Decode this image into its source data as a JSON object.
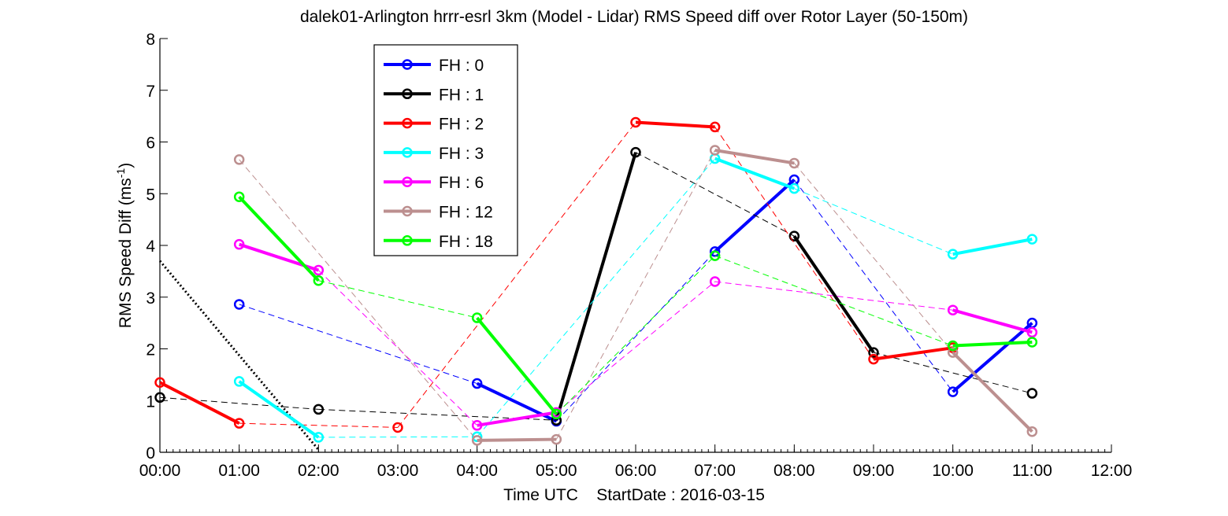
{
  "chart_data": {
    "type": "line",
    "title": "dalek01-Arlington hrrr-esrl 3km (Model - Lidar) RMS Speed diff over Rotor Layer (50-150m)",
    "xlabel": "Time UTC    StartDate : 2016-03-15",
    "ylabel": "RMS Speed Diff (ms",
    "ylabel_sup": "-1",
    "ylabel_close": ")",
    "xlim": [
      0,
      12
    ],
    "ylim": [
      0,
      8
    ],
    "x_ticks": [
      0,
      1,
      2,
      3,
      4,
      5,
      6,
      7,
      8,
      9,
      10,
      11,
      12
    ],
    "x_tick_labels": [
      "00:00",
      "01:00",
      "02:00",
      "03:00",
      "04:00",
      "05:00",
      "06:00",
      "07:00",
      "08:00",
      "09:00",
      "10:00",
      "11:00",
      "12:00"
    ],
    "y_ticks": [
      0,
      1,
      2,
      3,
      4,
      5,
      6,
      7,
      8
    ],
    "y_tick_labels": [
      "0",
      "1",
      "2",
      "3",
      "4",
      "5",
      "6",
      "7",
      "8"
    ],
    "legend_position": "upper-left inside",
    "series": [
      {
        "name": "FH : 0",
        "color": "#0000ff",
        "points": [
          [
            1,
            2.86
          ],
          [
            4,
            1.33
          ],
          [
            5,
            0.6
          ],
          [
            7,
            3.88
          ],
          [
            8,
            5.27
          ],
          [
            10,
            1.17
          ],
          [
            11,
            2.5
          ]
        ]
      },
      {
        "name": "FH : 1",
        "color": "#000000",
        "points": [
          [
            0,
            1.06
          ],
          [
            2,
            0.83
          ],
          [
            5,
            0.62
          ],
          [
            6,
            5.8
          ],
          [
            8,
            4.18
          ],
          [
            9,
            1.93
          ],
          [
            11,
            1.14
          ]
        ]
      },
      {
        "name": "FH : 2",
        "color": "#ff0000",
        "points": [
          [
            0,
            1.35
          ],
          [
            1,
            0.56
          ],
          [
            3,
            0.48
          ],
          [
            6,
            6.38
          ],
          [
            7,
            6.29
          ],
          [
            9,
            1.8
          ],
          [
            10,
            2.02
          ]
        ]
      },
      {
        "name": "FH : 3",
        "color": "#00ffff",
        "points": [
          [
            1,
            1.37
          ],
          [
            2,
            0.29
          ],
          [
            4,
            0.3
          ],
          [
            7,
            5.68
          ],
          [
            8,
            5.1
          ],
          [
            10,
            3.83
          ],
          [
            11,
            4.12
          ]
        ]
      },
      {
        "name": "FH : 6",
        "color": "#ff00ff",
        "points": [
          [
            1,
            4.02
          ],
          [
            2,
            3.52
          ],
          [
            4,
            0.52
          ],
          [
            5,
            0.77
          ],
          [
            7,
            3.3
          ],
          [
            10,
            2.75
          ],
          [
            11,
            2.32
          ]
        ]
      },
      {
        "name": "FH : 12",
        "color": "#bc8f8f",
        "points": [
          [
            1,
            5.66
          ],
          [
            4,
            0.23
          ],
          [
            5,
            0.25
          ],
          [
            7,
            5.84
          ],
          [
            8,
            5.59
          ],
          [
            10,
            1.93
          ],
          [
            11,
            0.4
          ]
        ]
      },
      {
        "name": "FH : 18",
        "color": "#00ff00",
        "points": [
          [
            1,
            4.94
          ],
          [
            2,
            3.32
          ],
          [
            4,
            2.6
          ],
          [
            5,
            0.74
          ],
          [
            7,
            3.8
          ],
          [
            10,
            2.06
          ],
          [
            11,
            2.13
          ]
        ]
      }
    ],
    "dotted_line": {
      "color": "#000000",
      "points": [
        [
          0,
          3.7
        ],
        [
          2,
          0.05
        ]
      ]
    }
  }
}
